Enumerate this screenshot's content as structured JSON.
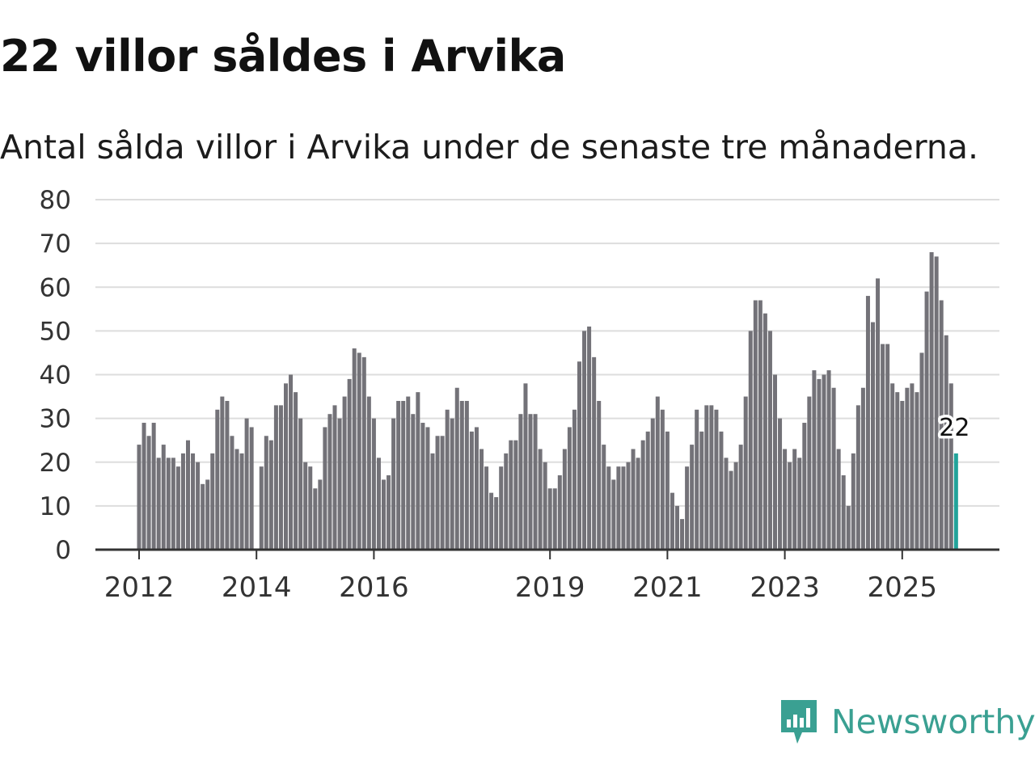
{
  "title": "22 villor såldes i Arvika",
  "subtitle": "Antal sålda villor i Arvika under de senaste tre månaderna.",
  "brand": {
    "name": "Newsworthy",
    "color": "#3aa092",
    "icon": "newsworthy-logo-icon"
  },
  "colors": {
    "bar": "#737278",
    "highlight": "#22a39a",
    "grid": "#dddddd",
    "axis": "#333333"
  },
  "chart_data": {
    "type": "bar",
    "title": "22 villor såldes i Arvika",
    "subtitle": "Antal sålda villor i Arvika under de senaste tre månaderna.",
    "xlabel": "",
    "ylabel": "",
    "ylim": [
      0,
      80
    ],
    "yticks": [
      0,
      10,
      20,
      30,
      40,
      50,
      60,
      70,
      80
    ],
    "grid": true,
    "x_start": "2012-01",
    "xticks": [
      {
        "label": "2012",
        "index": 0
      },
      {
        "label": "2014",
        "index": 24
      },
      {
        "label": "2016",
        "index": 48
      },
      {
        "label": "2019",
        "index": 84
      },
      {
        "label": "2021",
        "index": 108
      },
      {
        "label": "2023",
        "index": 132
      },
      {
        "label": "2025",
        "index": 156
      }
    ],
    "values": [
      24,
      29,
      26,
      29,
      21,
      24,
      21,
      21,
      19,
      22,
      25,
      22,
      20,
      15,
      16,
      22,
      32,
      35,
      34,
      26,
      23,
      22,
      30,
      28,
      null,
      19,
      26,
      25,
      33,
      33,
      38,
      40,
      36,
      30,
      20,
      19,
      14,
      16,
      28,
      31,
      33,
      30,
      35,
      39,
      46,
      45,
      44,
      35,
      30,
      21,
      16,
      17,
      30,
      34,
      34,
      35,
      31,
      36,
      29,
      28,
      22,
      26,
      26,
      32,
      30,
      37,
      34,
      34,
      27,
      28,
      23,
      19,
      13,
      12,
      19,
      22,
      25,
      25,
      31,
      38,
      31,
      31,
      23,
      20,
      14,
      14,
      17,
      23,
      28,
      32,
      43,
      50,
      51,
      44,
      34,
      24,
      19,
      16,
      19,
      19,
      20,
      23,
      21,
      25,
      27,
      30,
      35,
      32,
      27,
      13,
      10,
      7,
      19,
      24,
      32,
      27,
      33,
      33,
      32,
      27,
      21,
      18,
      20,
      24,
      35,
      50,
      57,
      57,
      54,
      50,
      40,
      30,
      23,
      20,
      23,
      21,
      29,
      35,
      41,
      39,
      40,
      41,
      37,
      23,
      17,
      10,
      22,
      33,
      37,
      58,
      52,
      62,
      47,
      47,
      38,
      36,
      34,
      37,
      38,
      36,
      45,
      59,
      68,
      67,
      57,
      49,
      38,
      22
    ],
    "highlight": {
      "index": 167,
      "value": 22,
      "label": "22"
    }
  }
}
